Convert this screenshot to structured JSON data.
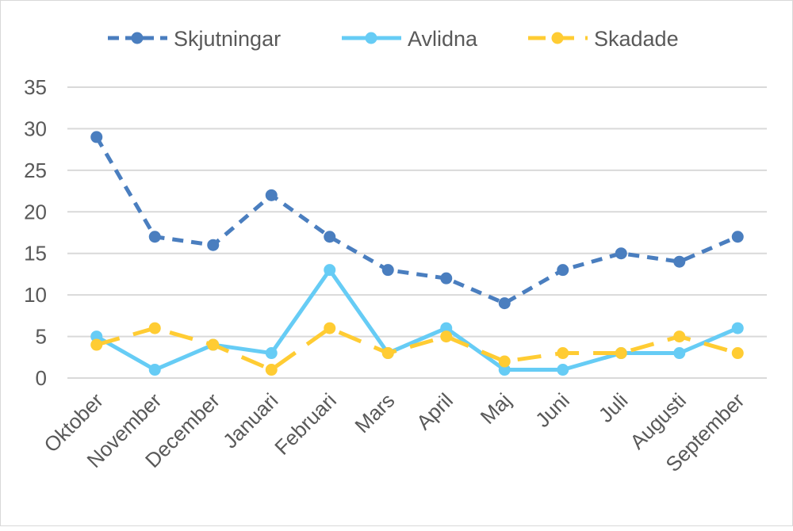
{
  "chart_data": {
    "type": "line",
    "title": "",
    "xlabel": "",
    "ylabel": "",
    "categories": [
      "Oktober",
      "November",
      "December",
      "Januari",
      "Februari",
      "Mars",
      "April",
      "Maj",
      "Juni",
      "Juli",
      "Augusti",
      "September"
    ],
    "yticks": [
      "0",
      "5",
      "10",
      "15",
      "20",
      "25",
      "30",
      "35"
    ],
    "ylim": [
      0,
      35
    ],
    "grid": true,
    "legend_position": "top",
    "series": [
      {
        "name": "Skjutningar",
        "color": "#4a7ebf",
        "style": "dashed",
        "values": [
          29,
          17,
          16,
          22,
          17,
          13,
          12,
          9,
          13,
          15,
          14,
          17
        ]
      },
      {
        "name": "Avlidna",
        "color": "#66ccf5",
        "style": "solid",
        "values": [
          5,
          1,
          4,
          3,
          13,
          3,
          6,
          1,
          1,
          3,
          3,
          6
        ]
      },
      {
        "name": "Skadade",
        "color": "#ffcc33",
        "style": "long-dash",
        "values": [
          4,
          6,
          4,
          1,
          6,
          3,
          5,
          2,
          3,
          3,
          5,
          3
        ]
      }
    ]
  }
}
